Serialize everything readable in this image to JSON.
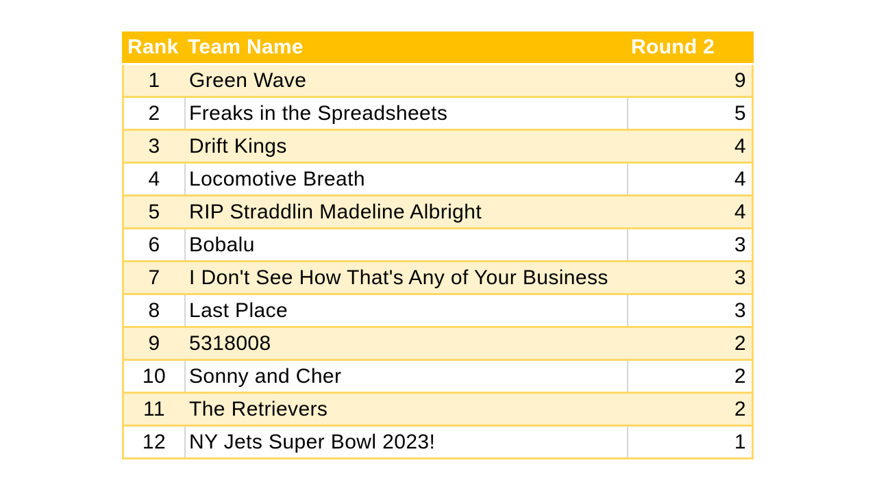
{
  "table": {
    "columns": [
      "Rank",
      "Team Name",
      "Round 2"
    ],
    "rows": [
      {
        "rank": 1,
        "team": "Green Wave",
        "score": 9
      },
      {
        "rank": 2,
        "team": "Freaks in the Spreadsheets",
        "score": 5
      },
      {
        "rank": 3,
        "team": "Drift Kings",
        "score": 4
      },
      {
        "rank": 4,
        "team": "Locomotive Breath",
        "score": 4
      },
      {
        "rank": 5,
        "team": "RIP Straddlin Madeline Albright",
        "score": 4
      },
      {
        "rank": 6,
        "team": "Bobalu",
        "score": 3
      },
      {
        "rank": 7,
        "team": "I Don't See How That's Any of Your Business",
        "score": 3
      },
      {
        "rank": 8,
        "team": "Last Place",
        "score": 3
      },
      {
        "rank": 9,
        "team": "5318008",
        "score": 2
      },
      {
        "rank": 10,
        "team": "Sonny and Cher",
        "score": 2
      },
      {
        "rank": 11,
        "team": "The Retrievers",
        "score": 2
      },
      {
        "rank": 12,
        "team": "NY Jets Super Bowl 2023!",
        "score": 1
      }
    ]
  },
  "colors": {
    "header_bg": "#FFC000",
    "header_text": "#FFFFFF",
    "band_fill": "#FFF2CC",
    "row_fill": "#FFFFFF",
    "border_gold": "#FFD966",
    "divider_gray": "#D6D6D6",
    "text_color": "#000000",
    "page_bg": "#FFFFFF"
  }
}
